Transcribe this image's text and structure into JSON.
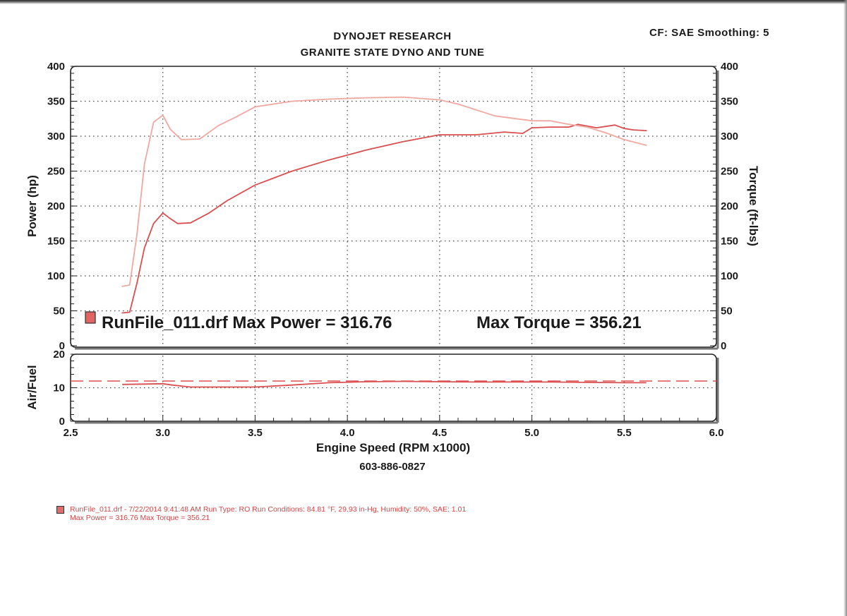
{
  "header": {
    "title_line1": "DYNOJET RESEARCH",
    "title_line2": "GRANITE STATE DYNO AND TUNE",
    "settings": "CF: SAE  Smoothing: 5"
  },
  "phone": "603-886-0827",
  "legend": {
    "text": "RunFile_011.drf Max Power = 316.76",
    "torque_text": "Max Torque = 356.21"
  },
  "footer": {
    "line1": "RunFile_011.drf - 7/22/2014 9:41:48 AM  Run Type: RO  Run Conditions: 84.81 °F, 29.93 in-Hg,  Humidity:  50%, SAE: 1.01",
    "line2": "Max Power = 316.76  Max Torque = 356.21"
  },
  "colors": {
    "power": "#d94f4f",
    "torque": "#f0a8a0",
    "afr": "#d94f4f",
    "target": "#e05050",
    "grid": "#444444",
    "frame": "#222222"
  },
  "chart_data": [
    {
      "type": "line",
      "title": "",
      "xlabel": "Engine Speed (RPM x1000)",
      "ylabel": "Power (hp)",
      "y2label": "Torque (ft-lbs)",
      "xlim": [
        2.5,
        6.0
      ],
      "xticks": [
        "2.5",
        "3.0",
        "3.5",
        "4.0",
        "4.5",
        "5.0",
        "5.5",
        "6.0"
      ],
      "ylim": [
        0,
        400
      ],
      "yticks": [
        "0",
        "50",
        "100",
        "150",
        "200",
        "250",
        "300",
        "350",
        "400"
      ],
      "y2lim": [
        0,
        400
      ],
      "y2ticks": [
        "0",
        "50",
        "100",
        "150",
        "200",
        "250",
        "300",
        "350",
        "400"
      ],
      "grid": true,
      "series": [
        {
          "name": "Power",
          "axis": "left",
          "x": [
            2.78,
            2.82,
            2.86,
            2.9,
            2.95,
            3.0,
            3.04,
            3.08,
            3.15,
            3.25,
            3.35,
            3.5,
            3.7,
            3.9,
            4.1,
            4.3,
            4.5,
            4.7,
            4.85,
            4.95,
            5.0,
            5.1,
            5.2,
            5.25,
            5.35,
            5.45,
            5.5,
            5.55,
            5.62
          ],
          "values": [
            47,
            48,
            90,
            140,
            175,
            190,
            182,
            175,
            176,
            190,
            208,
            230,
            250,
            266,
            280,
            292,
            302,
            302,
            306,
            304,
            312,
            313,
            313,
            317,
            312,
            316,
            311,
            309,
            308
          ]
        },
        {
          "name": "Torque",
          "axis": "right",
          "x": [
            2.78,
            2.82,
            2.86,
            2.9,
            2.95,
            3.0,
            3.04,
            3.1,
            3.2,
            3.3,
            3.4,
            3.5,
            3.7,
            3.9,
            4.1,
            4.3,
            4.5,
            4.6,
            4.8,
            5.0,
            5.1,
            5.2,
            5.3,
            5.4,
            5.5,
            5.62
          ],
          "values": [
            85,
            87,
            160,
            260,
            320,
            330,
            310,
            295,
            296,
            315,
            328,
            342,
            350,
            353,
            355,
            356,
            352,
            346,
            329,
            322,
            322,
            317,
            313,
            305,
            295,
            287
          ]
        }
      ]
    },
    {
      "type": "line",
      "title": "",
      "xlabel": "Engine Speed (RPM x1000)",
      "ylabel": "Air/Fuel",
      "xlim": [
        2.5,
        6.0
      ],
      "ylim": [
        0,
        20
      ],
      "yticks": [
        "0",
        "10",
        "20"
      ],
      "grid": true,
      "series": [
        {
          "name": "Air/Fuel",
          "x": [
            2.78,
            2.9,
            3.0,
            3.05,
            3.15,
            3.3,
            3.5,
            3.7,
            3.9,
            4.1,
            4.3,
            4.5,
            4.7,
            4.9,
            5.1,
            5.3,
            5.5,
            5.62
          ],
          "values": [
            11.0,
            11.1,
            11.2,
            10.8,
            10.2,
            10.2,
            10.2,
            10.8,
            11.5,
            11.8,
            11.9,
            11.8,
            11.7,
            11.7,
            11.7,
            11.6,
            11.5,
            11.5
          ]
        },
        {
          "name": "Target",
          "style": "dashed",
          "x": [
            2.5,
            6.0
          ],
          "values": [
            12.0,
            12.0
          ]
        }
      ]
    }
  ]
}
